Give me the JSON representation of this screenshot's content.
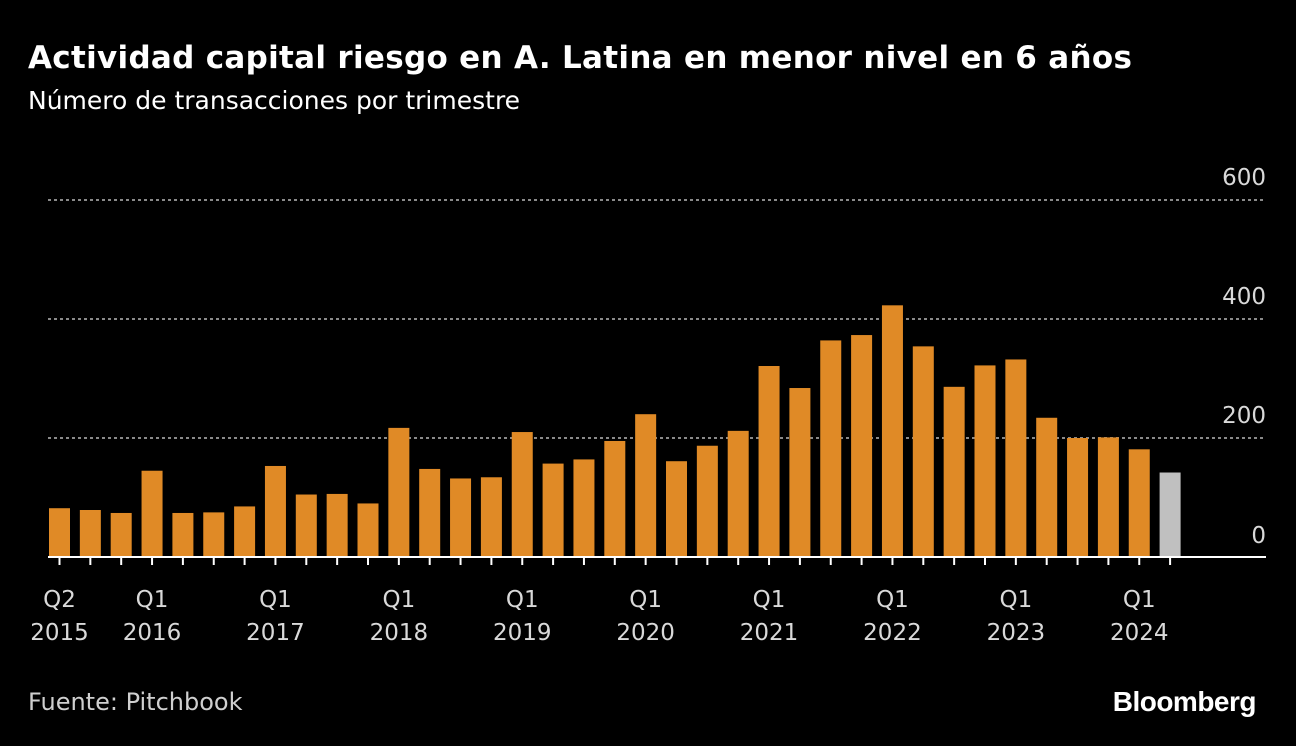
{
  "header": {
    "title": "Actividad capital riesgo en A. Latina en menor nivel en 6 años",
    "subtitle": "Número de transacciones por trimestre"
  },
  "footer": {
    "source": "Fuente: Pitchbook",
    "brand": "Bloomberg"
  },
  "colors": {
    "background": "#000000",
    "bar": "#e08a26",
    "highlight": "#c0c0c0",
    "grid": "#8a8a8a",
    "axis": "#ffffff",
    "tick_text": "#d9d9d9"
  },
  "chart_data": {
    "type": "bar",
    "title": "Actividad capital riesgo en A. Latina en menor nivel en 6 años",
    "subtitle": "Número de transacciones por trimestre",
    "xlabel": "",
    "ylabel": "",
    "ylim": [
      0,
      600
    ],
    "yticks": [
      0,
      200,
      400,
      600
    ],
    "grid": true,
    "categories": [
      "Q2 2015",
      "Q3 2015",
      "Q4 2015",
      "Q1 2016",
      "Q2 2016",
      "Q3 2016",
      "Q4 2016",
      "Q1 2017",
      "Q2 2017",
      "Q3 2017",
      "Q4 2017",
      "Q1 2018",
      "Q2 2018",
      "Q3 2018",
      "Q4 2018",
      "Q1 2019",
      "Q2 2019",
      "Q3 2019",
      "Q4 2019",
      "Q1 2020",
      "Q2 2020",
      "Q3 2020",
      "Q4 2020",
      "Q1 2021",
      "Q2 2021",
      "Q3 2021",
      "Q4 2021",
      "Q1 2022",
      "Q2 2022",
      "Q3 2022",
      "Q4 2022",
      "Q1 2023",
      "Q2 2023",
      "Q3 2023",
      "Q4 2023",
      "Q1 2024",
      "Q2 2024"
    ],
    "values": [
      82,
      79,
      74,
      145,
      74,
      75,
      85,
      153,
      105,
      106,
      90,
      217,
      148,
      132,
      134,
      210,
      157,
      164,
      195,
      240,
      161,
      187,
      212,
      321,
      284,
      364,
      373,
      423,
      354,
      286,
      322,
      332,
      234,
      200,
      201,
      181,
      142
    ],
    "highlight_last": true,
    "x_tick_labels": [
      {
        "index": 0,
        "quarter": "Q2",
        "year": "2015"
      },
      {
        "index": 3,
        "quarter": "Q1",
        "year": "2016"
      },
      {
        "index": 7,
        "quarter": "Q1",
        "year": "2017"
      },
      {
        "index": 11,
        "quarter": "Q1",
        "year": "2018"
      },
      {
        "index": 15,
        "quarter": "Q1",
        "year": "2019"
      },
      {
        "index": 19,
        "quarter": "Q1",
        "year": "2020"
      },
      {
        "index": 23,
        "quarter": "Q1",
        "year": "2021"
      },
      {
        "index": 27,
        "quarter": "Q1",
        "year": "2022"
      },
      {
        "index": 31,
        "quarter": "Q1",
        "year": "2023"
      },
      {
        "index": 35,
        "quarter": "Q1",
        "year": "2024"
      }
    ]
  }
}
